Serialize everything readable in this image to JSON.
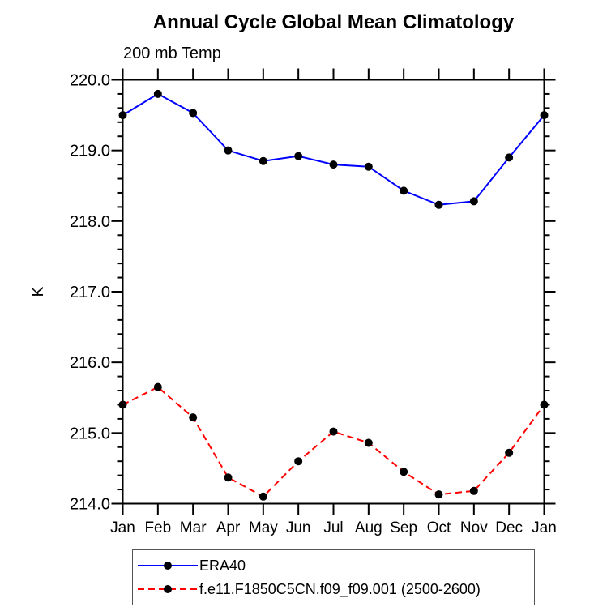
{
  "chart_data": {
    "type": "line",
    "title": "Annual Cycle Global Mean Climatology",
    "subtitle": "200 mb Temp",
    "xlabel": "",
    "ylabel": "K",
    "categories": [
      "Jan",
      "Feb",
      "Mar",
      "Apr",
      "May",
      "Jun",
      "Jul",
      "Aug",
      "Sep",
      "Oct",
      "Nov",
      "Dec",
      "Jan"
    ],
    "series": [
      {
        "name": "ERA40",
        "color": "#0000ff",
        "line_style": "solid",
        "marker": "filled-circle",
        "marker_color": "#000000",
        "values": [
          219.5,
          219.8,
          219.53,
          219.0,
          218.85,
          218.92,
          218.8,
          218.77,
          218.43,
          218.23,
          218.28,
          218.9,
          219.5
        ]
      },
      {
        "name": "f.e11.F1850C5CN.f09_f09.001 (2500-2600)",
        "color": "#ff0000",
        "line_style": "dashed",
        "marker": "filled-circle",
        "marker_color": "#000000",
        "values": [
          215.4,
          215.65,
          215.22,
          214.37,
          214.1,
          214.6,
          215.02,
          214.86,
          214.45,
          214.13,
          214.18,
          214.72,
          215.4
        ]
      }
    ],
    "ylim": [
      214.0,
      220.0
    ],
    "ytick_major_step": 1.0,
    "ytick_minor_step": 0.2,
    "ytick_labels": [
      "214.0",
      "215.0",
      "216.0",
      "217.0",
      "218.0",
      "219.0",
      "220.0"
    ],
    "grid": false,
    "legend_position": "bottom",
    "axis_color": "#000000",
    "ticks_direction": "outward"
  },
  "legend": {
    "border_color": "#555555"
  }
}
